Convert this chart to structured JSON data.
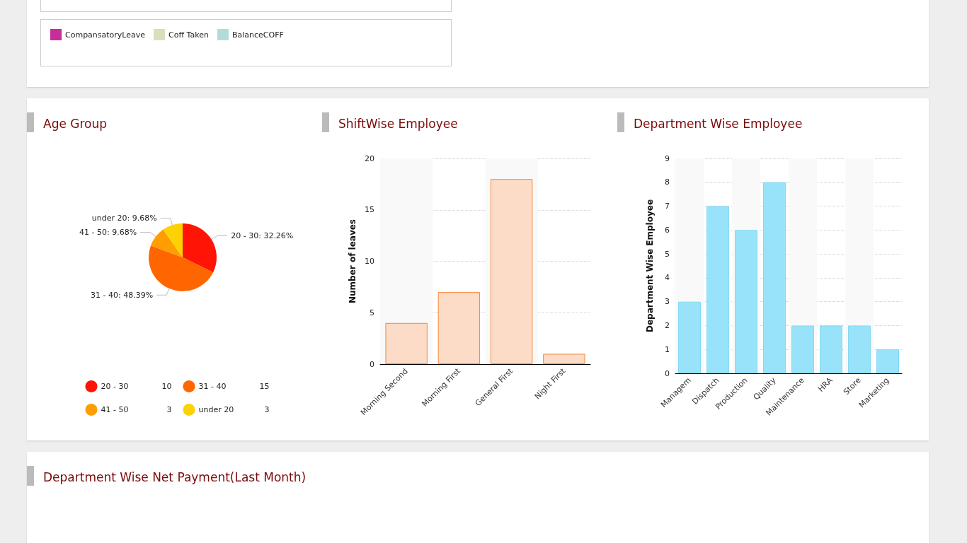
{
  "chart_data": [
    {
      "type": "other",
      "legend": "top left",
      "series": [
        {
          "name": "CompansatoryLeave",
          "color": "#c72e9a"
        },
        {
          "name": "Coff Taken",
          "color": "#d9dfbb"
        },
        {
          "name": "BalanceCOFF",
          "color": "#b2dcd5"
        }
      ]
    },
    {
      "type": "pie",
      "title": "Age Group",
      "categories": [
        "20 - 30",
        "31 - 40",
        "41 - 50",
        "under 20"
      ],
      "values": [
        32.26,
        48.39,
        9.68,
        9.68
      ],
      "colors": [
        "#ff1406",
        "#ff6600",
        "#ff9e01",
        "#fcd202"
      ],
      "value_labels": [
        "20 - 30: 32.26%",
        "31 - 40: 48.39%",
        "41 - 50: 9.68%",
        "under 20: 9.68%"
      ],
      "annotations": [
        "10",
        "15",
        "3",
        "3"
      ],
      "legend": "bottom"
    },
    {
      "type": "bar",
      "title": "ShiftWise Employee",
      "ylabel": "Number of leaves",
      "categories": [
        "Morning Second",
        "Morning First",
        "General First",
        "Night First"
      ],
      "values": [
        4,
        7,
        18,
        1
      ],
      "color": "#fcdcc6",
      "ylim": [
        0,
        20
      ],
      "yticks": [
        0,
        5,
        10,
        15,
        20
      ],
      "grid": "y"
    },
    {
      "type": "bar",
      "title": "Department Wise Employee",
      "ylabel": "Department Wise Employee",
      "categories": [
        "Managem",
        "Dispatch",
        "Production",
        "Quality",
        "Maintenance",
        "HRA",
        "Store",
        "Marketing"
      ],
      "values": [
        3,
        7,
        6,
        8,
        2,
        2,
        2,
        1
      ],
      "color": "#99e3fa",
      "ylim": [
        0,
        9
      ],
      "yticks": [
        0,
        1,
        2,
        3,
        4,
        5,
        6,
        7,
        8,
        9
      ],
      "grid": "y"
    },
    {
      "type": "other",
      "title": "Department Wise Net Payment(Last Month)"
    }
  ]
}
